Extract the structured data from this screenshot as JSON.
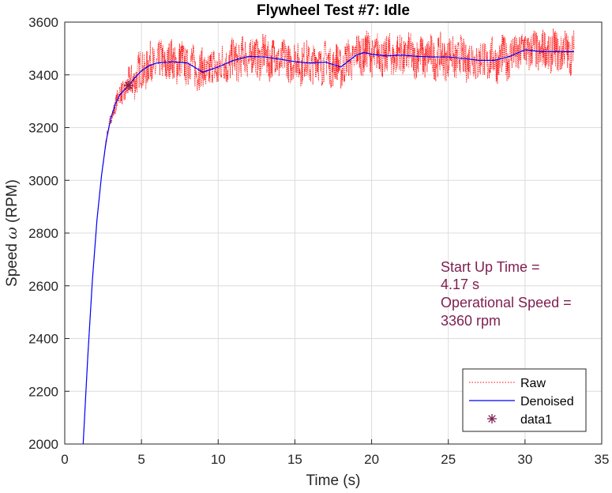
{
  "chart_data": {
    "type": "line",
    "title": "Flywheel Test #7: Idle",
    "xlabel": "Time (s)",
    "ylabel_prefix": "Speed ",
    "ylabel_symbol": "ω",
    "ylabel_suffix": " (RPM)",
    "xlim": [
      0,
      35
    ],
    "ylim": [
      2000,
      3600
    ],
    "xticks": [
      0,
      5,
      10,
      15,
      20,
      25,
      30,
      35
    ],
    "yticks": [
      2000,
      2200,
      2400,
      2600,
      2800,
      3000,
      3200,
      3400,
      3600
    ],
    "grid": true,
    "legend_position": "bottom-right",
    "series": [
      {
        "name": "Raw",
        "style": "dotted",
        "color": "#ff0000",
        "noise_amplitude_rpm": 75
      },
      {
        "name": "Denoised",
        "style": "solid",
        "color": "#0000ff",
        "x": [
          1.2,
          1.5,
          1.8,
          2.1,
          2.4,
          2.7,
          3.0,
          3.3,
          3.6,
          4.0,
          4.17,
          4.5,
          5.0,
          5.5,
          6.0,
          7.0,
          8.0,
          9.0,
          10.0,
          11.0,
          12.0,
          13.0,
          14.0,
          15.0,
          16.0,
          17.0,
          18.0,
          19.0,
          19.5,
          20.0,
          21.0,
          22.0,
          23.0,
          24.0,
          25.0,
          26.0,
          27.0,
          28.0,
          29.0,
          30.0,
          31.0,
          32.0,
          33.2
        ],
        "y": [
          2000,
          2330,
          2620,
          2850,
          3020,
          3150,
          3235,
          3290,
          3325,
          3350,
          3360,
          3385,
          3415,
          3435,
          3445,
          3450,
          3445,
          3410,
          3430,
          3455,
          3470,
          3468,
          3460,
          3450,
          3445,
          3448,
          3430,
          3475,
          3485,
          3478,
          3472,
          3475,
          3470,
          3468,
          3468,
          3462,
          3455,
          3455,
          3470,
          3495,
          3488,
          3488,
          3488
        ]
      },
      {
        "name": "data1",
        "style": "marker",
        "marker": "*",
        "color": "#7e1e50",
        "x": [
          4.17
        ],
        "y": [
          3360
        ]
      }
    ],
    "annotation": {
      "lines": [
        "Start Up Time =",
        "4.17 s",
        "Operational Speed =",
        "3360 rpm"
      ],
      "color": "#7e1e50"
    }
  }
}
